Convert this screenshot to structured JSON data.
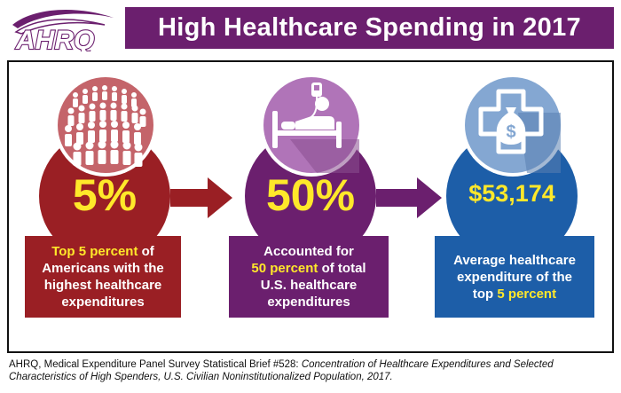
{
  "logo": {
    "text": "AHRQ"
  },
  "header": {
    "title": "High Healthcare Spending in 2017"
  },
  "colors": {
    "purple": "#6b1f6e",
    "red": "#9a1f24",
    "blue": "#1d5ea8",
    "yellow": "#ffe82a"
  },
  "panels": [
    {
      "icon": "crowd-of-people-icon",
      "stat": "5%",
      "desc_lines": [
        {
          "pre": "",
          "hl": "Top 5 percent",
          "post": " of"
        },
        {
          "pre": "Americans with the",
          "hl": "",
          "post": ""
        },
        {
          "pre": "highest healthcare",
          "hl": "",
          "post": ""
        },
        {
          "pre": "expenditures",
          "hl": "",
          "post": ""
        }
      ]
    },
    {
      "icon": "hospital-bed-icon",
      "stat": "50%",
      "desc_lines": [
        {
          "pre": "Accounted for",
          "hl": "",
          "post": ""
        },
        {
          "pre": "",
          "hl": "50 percent",
          "post": " of total"
        },
        {
          "pre": "U.S. healthcare",
          "hl": "",
          "post": ""
        },
        {
          "pre": "expenditures",
          "hl": "",
          "post": ""
        }
      ]
    },
    {
      "icon": "medical-cross-money-bag-icon",
      "stat": "$53,174",
      "desc_lines": [
        {
          "pre": "Average healthcare",
          "hl": "",
          "post": ""
        },
        {
          "pre": "expenditure of the",
          "hl": "",
          "post": ""
        },
        {
          "pre": "top ",
          "hl": "5 percent",
          "post": ""
        }
      ]
    }
  ],
  "footer": {
    "source": "AHRQ, Medical Expenditure Panel Survey Statistical Brief #528: ",
    "title_italic": "Concentration of Healthcare Expenditures and Selected Characteristics of High Spenders, U.S. Civilian Noninstitutionalized Population, 2017."
  }
}
